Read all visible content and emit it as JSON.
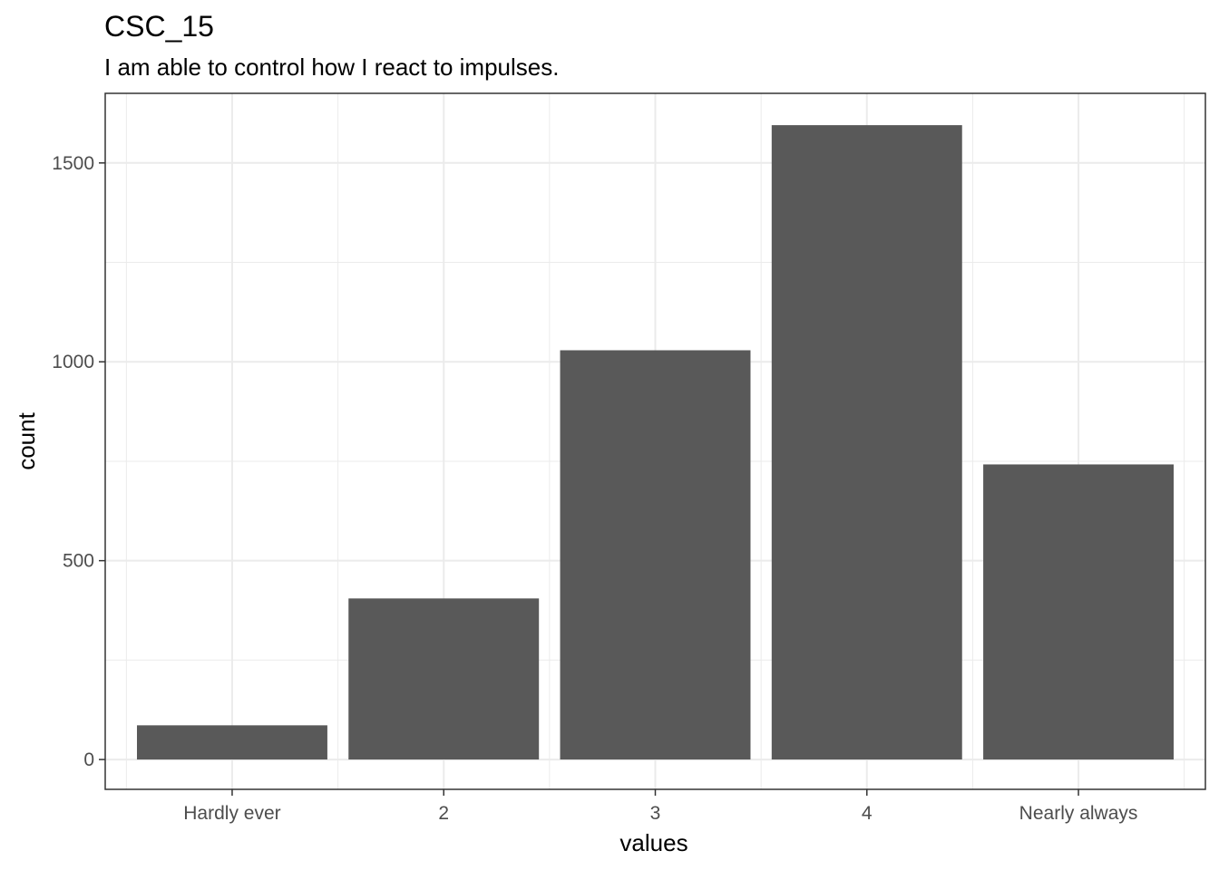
{
  "chart_data": {
    "type": "bar",
    "title": "CSC_15",
    "subtitle": "I am able to control how I react to impulses.",
    "xlabel": "values",
    "ylabel": "count",
    "categories": [
      "Hardly ever",
      "2",
      "3",
      "4",
      "Nearly always"
    ],
    "values": [
      86,
      405,
      1029,
      1595,
      742
    ],
    "ylim": [
      -75,
      1675
    ],
    "yticks": [
      0,
      500,
      1000,
      1500
    ],
    "ytick_labels": [
      "0",
      "500",
      "1000",
      "1500"
    ],
    "grid": true,
    "legend": "none",
    "bar_color": "#595959",
    "grid_color": "#ebebeb",
    "panel_border_color": "#333333"
  }
}
